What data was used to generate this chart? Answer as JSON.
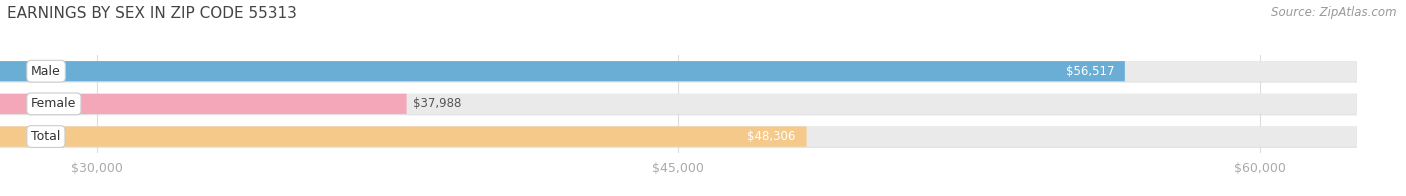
{
  "title": "EARNINGS BY SEX IN ZIP CODE 55313",
  "source": "Source: ZipAtlas.com",
  "categories": [
    "Male",
    "Female",
    "Total"
  ],
  "values": [
    56517,
    37988,
    48306
  ],
  "bar_colors": [
    "#6aaed6",
    "#f4a7b9",
    "#f5c98a"
  ],
  "bar_bg_color": "#eaeaea",
  "bar_border_color": "#d0d0d0",
  "label_colors": [
    "#ffffff",
    "#555555",
    "#ffffff"
  ],
  "xlim_min": 27500,
  "xlim_max": 62500,
  "xticks": [
    30000,
    45000,
    60000
  ],
  "xtick_labels": [
    "$30,000",
    "$45,000",
    "$60,000"
  ],
  "value_labels": [
    "$56,517",
    "$37,988",
    "$48,306"
  ],
  "title_fontsize": 11,
  "tick_fontsize": 9,
  "bar_label_fontsize": 8.5,
  "category_fontsize": 9,
  "source_fontsize": 8.5,
  "background_color": "#ffffff",
  "bar_height": 0.62,
  "bar_gap": 0.08,
  "title_color": "#444444",
  "source_color": "#999999",
  "tick_color": "#aaaaaa",
  "grid_color": "#dddddd",
  "cat_label_bg": "#ffffff",
  "cat_label_border": "#cccccc"
}
